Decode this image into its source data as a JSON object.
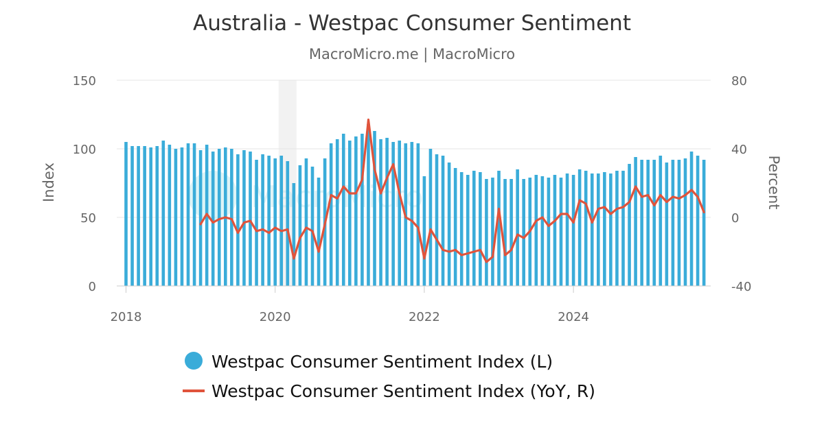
{
  "chart_data": {
    "type": "bar+line",
    "title": "Australia - Westpac Consumer Sentiment",
    "subtitle": "MacroMicro.me | MacroMicro",
    "watermark": "MacroMicro",
    "y_left": {
      "label": "Index",
      "ylim": [
        0,
        150
      ],
      "ticks": [
        "0",
        "50",
        "100",
        "150"
      ]
    },
    "y_right": {
      "label": "Percent",
      "ylim": [
        -40,
        80
      ],
      "ticks": [
        "-40",
        "0",
        "40",
        "80"
      ]
    },
    "x": {
      "range": [
        "2018-01",
        "2025-09"
      ],
      "ticks": [
        "2018",
        "2020",
        "2022",
        "2024"
      ]
    },
    "grid": true,
    "highlight_period": [
      "2020-02",
      "2020-04"
    ],
    "series": [
      {
        "name": "Westpac Consumer Sentiment Index (L)",
        "type": "bar",
        "axis": "left",
        "color": "#3aacd9",
        "start": "2018-01",
        "values": [
          105,
          102,
          102,
          102,
          101,
          102,
          106,
          103,
          100,
          101,
          104,
          104,
          99,
          103,
          98,
          100,
          101,
          100,
          96,
          99,
          98,
          92,
          96,
          95,
          93,
          95,
          91,
          75,
          88,
          93,
          87,
          79,
          93,
          104,
          107,
          111,
          106,
          109,
          111,
          118,
          113,
          107,
          108,
          105,
          106,
          104,
          105,
          104,
          80,
          100,
          96,
          95,
          90,
          86,
          83,
          81,
          84,
          83,
          78,
          79,
          84,
          78,
          78,
          85,
          78,
          79,
          81,
          80,
          79,
          81,
          79,
          82,
          81,
          85,
          84,
          82,
          82,
          83,
          82,
          84,
          84,
          89,
          94,
          92,
          92,
          92,
          95,
          90,
          92,
          92,
          93,
          98,
          95,
          92
        ]
      },
      {
        "name": "Westpac Consumer Sentiment Index (YoY, R)",
        "type": "line",
        "axis": "right",
        "color": "#e0533b",
        "start": "2019-01",
        "values": [
          -4,
          2,
          -3,
          -1,
          0,
          -1,
          -9,
          -3,
          -2,
          -8,
          -7,
          -9,
          -6,
          -8,
          -7,
          -24,
          -12,
          -6,
          -8,
          -20,
          -4,
          13,
          11,
          18,
          14,
          14,
          22,
          57,
          28,
          14,
          23,
          31,
          14,
          0,
          -2,
          -6,
          -24,
          -7,
          -13,
          -19,
          -20,
          -19,
          -22,
          -21,
          -20,
          -19,
          -26,
          -23,
          5,
          -22,
          -19,
          -10,
          -12,
          -8,
          -2,
          0,
          -5,
          -2,
          2,
          2,
          -3,
          10,
          8,
          -3,
          5,
          6,
          2,
          5,
          6,
          9,
          18,
          12,
          13,
          7,
          13,
          9,
          12,
          11,
          13,
          16,
          12,
          3
        ]
      }
    ]
  }
}
